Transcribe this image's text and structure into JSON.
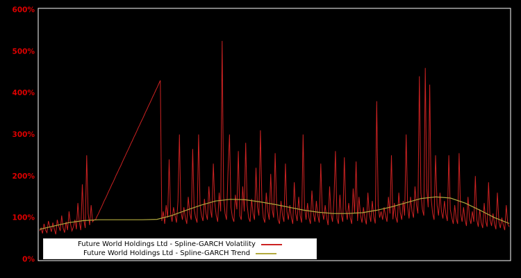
{
  "chart": {
    "background_color": "#000000",
    "frame_color": "#ffffff",
    "axis_label_color": "#dd0000"
  },
  "chart_data": {
    "type": "line",
    "title": "",
    "xlabel": "",
    "ylabel": "",
    "ylim": [
      0,
      600
    ],
    "grid": false,
    "legend_position": "bottom-left",
    "y_tick_labels": [
      "0%",
      "100%",
      "200%",
      "300%",
      "400%",
      "500%",
      "600%"
    ],
    "series": [
      {
        "name": "Future World Holdings Ltd - Spline-GARCH Volatility",
        "color": "#cc2222",
        "unit": "percent",
        "values": [
          68,
          75,
          62,
          85,
          70,
          64,
          92,
          78,
          66,
          88,
          72,
          60,
          95,
          80,
          68,
          105,
          75,
          64,
          90,
          70,
          115,
          85,
          68,
          78,
          95,
          72,
          135,
          88,
          70,
          180,
          95,
          75,
          250,
          110,
          82,
          130,
          90,
          95,
          95,
          103,
          110,
          118,
          125,
          133,
          141,
          148,
          156,
          164,
          171,
          179,
          186,
          194,
          202,
          209,
          217,
          224,
          232,
          240,
          247,
          255,
          262,
          270,
          278,
          285,
          293,
          300,
          308,
          316,
          323,
          331,
          338,
          346,
          354,
          361,
          369,
          376,
          384,
          392,
          399,
          407,
          414,
          422,
          430,
          92,
          115,
          85,
          130,
          100,
          240,
          110,
          90,
          125,
          105,
          88,
          140,
          300,
          115,
          95,
          125,
          100,
          85,
          150,
          110,
          95,
          265,
          120,
          100,
          88,
          300,
          130,
          105,
          92,
          145,
          110,
          95,
          175,
          120,
          100,
          230,
          135,
          105,
          90,
          160,
          115,
          525,
          150,
          110,
          95,
          210,
          300,
          125,
          100,
          90,
          155,
          120,
          260,
          105,
          95,
          175,
          115,
          280,
          130,
          100,
          90,
          145,
          110,
          95,
          220,
          125,
          105,
          310,
          140,
          100,
          88,
          160,
          115,
          95,
          205,
          120,
          100,
          255,
          130,
          95,
          85,
          140,
          105,
          90,
          230,
          115,
          95,
          130,
          100,
          85,
          185,
          110,
          92,
          150,
          105,
          88,
          300,
          125,
          95,
          135,
          100,
          85,
          165,
          110,
          90,
          140,
          105,
          88,
          230,
          115,
          95,
          130,
          100,
          82,
          175,
          108,
          90,
          145,
          260,
          98,
          85,
          155,
          105,
          90,
          245,
          120,
          95,
          135,
          100,
          85,
          170,
          110,
          235,
          92,
          150,
          105,
          88,
          125,
          98,
          84,
          160,
          108,
          90,
          140,
          102,
          86,
          380,
          130,
          100,
          115,
          95,
          125,
          105,
          90,
          150,
          110,
          250,
          96,
          135,
          102,
          88,
          160,
          112,
          95,
          140,
          105,
          300,
          125,
          98,
          150,
          115,
          100,
          175,
          130,
          110,
          440,
          160,
          120,
          105,
          460,
          170,
          125,
          420,
          145,
          110,
          95,
          250,
          130,
          105,
          160,
          115,
          98,
          140,
          108,
          92,
          250,
          120,
          100,
          85,
          130,
          98,
          85,
          255,
          110,
          90,
          125,
          95,
          80,
          150,
          100,
          85,
          115,
          90,
          200,
          95,
          78,
          120,
          88,
          75,
          135,
          92,
          78,
          185,
          95,
          80,
          110,
          85,
          72,
          160,
          90,
          75,
          100,
          82,
          70,
          130,
          85,
          78
        ]
      },
      {
        "name": "Future World Holdings Ltd - Spline-GARCH Trend",
        "color": "#b2aa3e",
        "unit": "percent",
        "values": [
          72,
          80,
          88,
          93,
          95,
          95,
          95,
          95,
          96,
          105,
          118,
          130,
          140,
          144,
          143,
          138,
          132,
          125,
          118,
          113,
          110,
          110,
          112,
          118,
          126,
          136,
          146,
          150,
          147,
          135,
          118,
          100,
          86
        ]
      }
    ]
  }
}
